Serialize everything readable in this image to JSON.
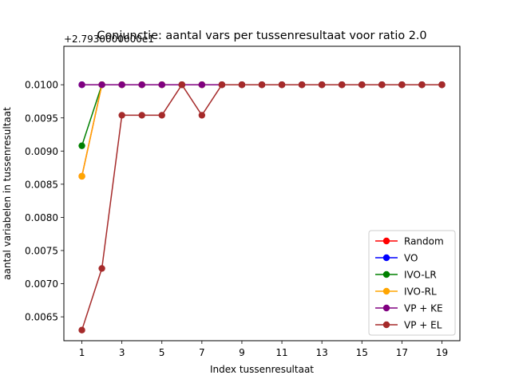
{
  "chart_data": {
    "type": "line",
    "title": "Conjunctie: aantal vars per tussenresultaat voor ratio 2.0",
    "xlabel": "Index tussenresultaat",
    "ylabel": "aantal variabelen in tussenresultaat",
    "offset_label": "+2.7930000000e1",
    "x": [
      1,
      2,
      3,
      4,
      5,
      6,
      7,
      8,
      9,
      10,
      11,
      12,
      13,
      14,
      15,
      16,
      17,
      18,
      19
    ],
    "xticks": [
      1,
      3,
      5,
      7,
      9,
      11,
      13,
      15,
      17,
      19
    ],
    "xtick_labels": [
      "1",
      "3",
      "5",
      "7",
      "9",
      "11",
      "13",
      "15",
      "17",
      "19"
    ],
    "yticks": [
      0.0065,
      0.007,
      0.0075,
      0.008,
      0.0085,
      0.009,
      0.0095,
      0.01
    ],
    "ytick_labels": [
      "0.0065",
      "0.0070",
      "0.0075",
      "0.0080",
      "0.0085",
      "0.0090",
      "0.0095",
      "0.0100"
    ],
    "xlim": [
      0.1,
      19.9
    ],
    "ylim": [
      0.00614,
      0.01058
    ],
    "legend_position": "lower-right",
    "series": [
      {
        "name": "Random",
        "color": "#ff0000",
        "x": [
          1,
          2,
          3,
          4,
          5,
          6,
          7,
          8,
          9,
          10,
          11,
          12,
          13,
          14,
          15,
          16,
          17,
          18,
          19
        ],
        "values": [
          0.00862,
          0.01,
          0.01,
          0.01,
          0.01,
          0.01,
          0.01,
          0.01,
          0.01,
          0.01,
          0.01,
          0.01,
          0.01,
          0.01,
          0.01,
          0.01,
          0.01,
          0.01,
          0.01
        ]
      },
      {
        "name": "VO",
        "color": "#0000ff",
        "x": [
          1,
          2,
          3,
          4,
          5,
          6,
          7,
          8,
          9,
          10,
          11,
          12,
          13,
          14,
          15,
          16,
          17,
          18,
          19
        ],
        "values": [
          0.01,
          0.01,
          0.01,
          0.01,
          0.01,
          0.01,
          0.01,
          0.01,
          0.01,
          0.01,
          0.01,
          0.01,
          0.01,
          0.01,
          0.01,
          0.01,
          0.01,
          0.01,
          0.01
        ]
      },
      {
        "name": "IVO-LR",
        "color": "#008000",
        "x": [
          1,
          2,
          3,
          4,
          5,
          6,
          7,
          8,
          9,
          10,
          11,
          12,
          13,
          14,
          15,
          16,
          17,
          18,
          19
        ],
        "values": [
          0.00908,
          0.01,
          0.01,
          0.01,
          0.01,
          0.01,
          0.01,
          0.01,
          0.01,
          0.01,
          0.01,
          0.01,
          0.01,
          0.01,
          0.01,
          0.01,
          0.01,
          0.01,
          0.01
        ]
      },
      {
        "name": "IVO-RL",
        "color": "#ffa500",
        "x": [
          1,
          2,
          3,
          4,
          5,
          6,
          7,
          8,
          9,
          10,
          11,
          12,
          13,
          14,
          15,
          16,
          17,
          18,
          19
        ],
        "values": [
          0.00862,
          0.01,
          0.01,
          0.01,
          0.01,
          0.01,
          0.01,
          0.01,
          0.01,
          0.01,
          0.01,
          0.01,
          0.01,
          0.01,
          0.01,
          0.01,
          0.01,
          0.01,
          0.01
        ]
      },
      {
        "name": "VP + KE",
        "color": "#800080",
        "x": [
          1,
          2,
          3,
          4,
          5,
          6,
          7,
          8,
          9,
          10,
          11,
          12,
          13,
          14,
          15,
          16,
          17,
          18,
          19
        ],
        "values": [
          0.01,
          0.01,
          0.01,
          0.01,
          0.01,
          0.01,
          0.01,
          0.01,
          0.01,
          0.01,
          0.01,
          0.01,
          0.01,
          0.01,
          0.01,
          0.01,
          0.01,
          0.01,
          0.01
        ]
      },
      {
        "name": "VP + EL",
        "color": "#a52a2a",
        "x": [
          1,
          2,
          3,
          4,
          5,
          6,
          7,
          8,
          9,
          10,
          11,
          12,
          13,
          14,
          15,
          16,
          17,
          18,
          19
        ],
        "values": [
          0.0063,
          0.00723,
          0.00954,
          0.00954,
          0.00954,
          0.01,
          0.00954,
          0.01,
          0.01,
          0.01,
          0.01,
          0.01,
          0.01,
          0.01,
          0.01,
          0.01,
          0.01,
          0.01,
          0.01
        ]
      }
    ]
  }
}
